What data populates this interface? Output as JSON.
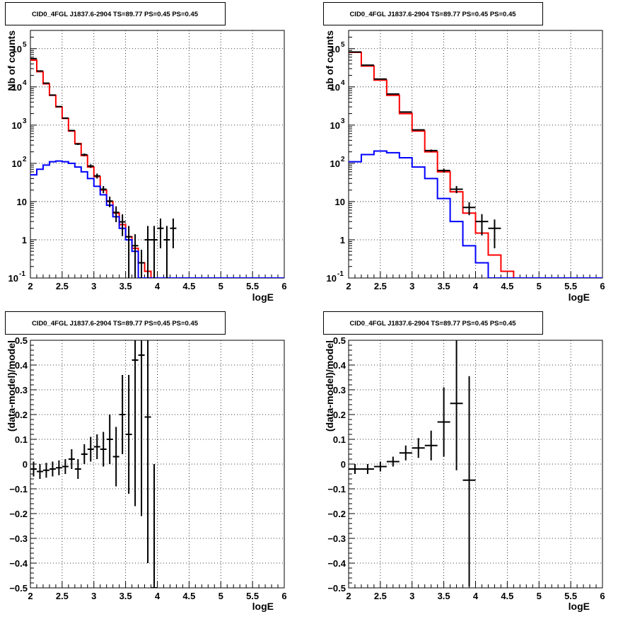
{
  "chart_data": [
    {
      "type": "line",
      "title": "CID0_4FGL J1837.6-2904 TS=89.77 PS=0.45 PS=0.45",
      "xlabel": "logE",
      "ylabel": "Nb of counts",
      "xlim": [
        2,
        6
      ],
      "ylim": [
        0.1,
        300000
      ],
      "log_y": true,
      "grid": true,
      "x_ticks": [
        "2",
        "2.5",
        "3",
        "3.5",
        "4",
        "4.5",
        "5",
        "5.5",
        "6"
      ],
      "y_ticks": [
        "10^{-1}",
        "1",
        "10",
        "10^{2}",
        "10^{3}",
        "10^{4}",
        "10^{5}"
      ],
      "bin_edges": [
        2.0,
        2.1,
        2.2,
        2.3,
        2.4,
        2.5,
        2.6,
        2.7,
        2.8,
        2.9,
        3.0,
        3.1,
        3.2,
        3.3,
        3.4,
        3.5,
        3.6,
        3.7,
        3.8,
        3.9,
        4.0,
        4.1,
        4.2,
        4.3,
        4.4,
        4.5,
        4.6,
        4.7,
        4.8,
        4.9,
        5.0,
        5.1,
        5.2,
        5.3,
        5.4,
        5.5,
        5.6,
        5.7,
        5.8,
        5.9,
        6.0
      ],
      "series": [
        {
          "color": "#ff0000",
          "style": "step",
          "values": [
            50000,
            25000,
            12000,
            6000,
            3000,
            1500,
            700,
            330,
            160,
            80,
            45,
            20,
            10,
            5,
            2.5,
            1.2,
            0.6,
            0.25,
            0.15,
            0.1,
            0.1,
            0.1,
            0.1,
            0.1,
            0.1,
            0.1,
            0.1,
            0.1,
            0.1,
            0.1,
            0.1,
            0.1,
            0.1,
            0.1,
            0.1,
            0.1,
            0.1,
            0.1,
            0.1,
            0.1
          ]
        },
        {
          "color": "#0000ff",
          "style": "step",
          "values": [
            50,
            70,
            90,
            110,
            115,
            110,
            100,
            80,
            60,
            40,
            25,
            15,
            8,
            4,
            2,
            1,
            0.5,
            0.1,
            0.1,
            0.1,
            0.1,
            0.1,
            0.1,
            0.1,
            0.1,
            0.1,
            0.1,
            0.1,
            0.1,
            0.1,
            0.1,
            0.1,
            0.1,
            0.1,
            0.1,
            0.1,
            0.1,
            0.1,
            0.1,
            0.1
          ]
        },
        {
          "color": "#000000",
          "style": "errorbar",
          "x": [
            2.05,
            2.15,
            2.25,
            2.35,
            2.45,
            2.55,
            2.65,
            2.75,
            2.85,
            2.95,
            3.05,
            3.15,
            3.25,
            3.35,
            3.45,
            3.55,
            3.65,
            3.75,
            3.85,
            3.95,
            4.05,
            4.15,
            4.25
          ],
          "y": [
            55000,
            26000,
            12500,
            6100,
            3050,
            1520,
            720,
            320,
            168,
            85,
            47,
            21,
            10.3,
            5.2,
            2.95,
            1.2,
            0.7,
            0.25,
            1,
            1,
            2,
            1,
            2
          ],
          "yerr_lo": [
            230,
            160,
            110,
            78,
            55,
            39,
            27,
            18,
            13,
            9,
            7,
            4.5,
            3.2,
            2.3,
            1.7,
            1.1,
            0.7,
            0.2,
            0.9,
            0.9,
            1.4,
            0.9,
            1.4
          ],
          "yerr_hi": [
            230,
            160,
            110,
            78,
            55,
            39,
            27,
            18,
            13,
            9,
            7,
            4.5,
            3.2,
            2.3,
            1.7,
            1.1,
            0.7,
            0.3,
            1.3,
            1.3,
            1.6,
            1.3,
            1.6
          ]
        }
      ]
    },
    {
      "type": "line",
      "title": "CID0_4FGL J1837.6-2904 TS=89.77 PS=0.45 PS=0.45",
      "xlabel": "logE",
      "ylabel": "nb of counts",
      "xlim": [
        2,
        6
      ],
      "ylim": [
        0.1,
        300000
      ],
      "log_y": true,
      "grid": true,
      "x_ticks": [
        "2",
        "2.5",
        "3",
        "3.5",
        "4",
        "4.5",
        "5",
        "5.5",
        "6"
      ],
      "y_ticks": [
        "10^{-1}",
        "1",
        "10",
        "10^{2}",
        "10^{3}",
        "10^{4}",
        "10^{5}"
      ],
      "bin_edges": [
        2.0,
        2.2,
        2.4,
        2.6,
        2.8,
        3.0,
        3.2,
        3.4,
        3.6,
        3.8,
        4.0,
        4.2,
        4.4,
        4.6,
        4.8,
        5.0,
        5.2,
        5.4,
        5.6,
        5.8,
        6.0
      ],
      "series": [
        {
          "color": "#ff0000",
          "style": "step",
          "values": [
            80000,
            35000,
            15000,
            6000,
            2000,
            700,
            200,
            60,
            18,
            5,
            1.5,
            0.4,
            0.15,
            0.1,
            0.1,
            0.1,
            0.1,
            0.1,
            0.1,
            0.1
          ]
        },
        {
          "color": "#0000ff",
          "style": "step",
          "values": [
            110,
            170,
            210,
            190,
            140,
            80,
            40,
            12,
            3,
            0.7,
            0.25,
            0.1,
            0.1,
            0.1,
            0.1,
            0.1,
            0.1,
            0.1,
            0.1,
            0.1
          ]
        },
        {
          "color": "#000000",
          "style": "errorbar",
          "x": [
            2.1,
            2.3,
            2.5,
            2.7,
            2.9,
            3.1,
            3.3,
            3.5,
            3.7,
            3.9,
            4.1,
            4.3
          ],
          "y": [
            82000,
            37000,
            16000,
            6500,
            2200,
            750,
            215,
            65,
            21,
            7,
            3,
            2
          ],
          "yerr_lo": [
            290,
            190,
            130,
            80,
            47,
            27,
            15,
            8,
            4.5,
            2.6,
            1.7,
            1.4
          ],
          "yerr_hi": [
            290,
            190,
            130,
            80,
            47,
            27,
            15,
            8,
            4.5,
            2.6,
            1.7,
            1.4
          ]
        }
      ]
    },
    {
      "type": "scatter",
      "title": "CID0_4FGL J1837.6-2904 TS=89.77 PS=0.45 PS=0.45",
      "xlabel": "logE",
      "ylabel": "(data-model)/model",
      "xlim": [
        2,
        6
      ],
      "ylim": [
        -0.5,
        0.5
      ],
      "grid": true,
      "x_ticks": [
        "2",
        "2.5",
        "3",
        "3.5",
        "4",
        "4.5",
        "5",
        "5.5",
        "6"
      ],
      "y_ticks": [
        "−0.5",
        "−0.4",
        "−0.3",
        "−0.2",
        "−0.1",
        "0",
        "0.1",
        "0.2",
        "0.3",
        "0.4",
        "0.5"
      ],
      "series": [
        {
          "color": "#000000",
          "style": "errorbar",
          "x": [
            2.05,
            2.15,
            2.25,
            2.35,
            2.45,
            2.55,
            2.65,
            2.75,
            2.85,
            2.95,
            3.05,
            3.15,
            3.25,
            3.35,
            3.45,
            3.55,
            3.65,
            3.75,
            3.85,
            3.95
          ],
          "y": [
            -0.02,
            -0.03,
            -0.025,
            -0.02,
            -0.015,
            -0.01,
            0.02,
            -0.02,
            0.04,
            0.06,
            0.07,
            0.06,
            0.1,
            0.03,
            0.2,
            0.12,
            0.42,
            0.44,
            0.19,
            -0.5
          ],
          "yerr_lo": [
            0.03,
            0.03,
            0.03,
            0.03,
            0.03,
            0.03,
            0.04,
            0.04,
            0.04,
            0.05,
            0.05,
            0.07,
            0.1,
            0.12,
            0.16,
            0.24,
            0.59,
            0.65,
            0.59,
            0.0
          ],
          "yerr_hi": [
            0.03,
            0.03,
            0.03,
            0.03,
            0.03,
            0.03,
            0.04,
            0.04,
            0.04,
            0.05,
            0.05,
            0.07,
            0.1,
            0.12,
            0.16,
            0.24,
            0.08,
            0.06,
            0.31,
            0.5
          ]
        }
      ]
    },
    {
      "type": "scatter",
      "title": "CID0_4FGL J1837.6-2904 TS=89.77 PS=0.45 PS=0.45",
      "xlabel": "logE",
      "ylabel": "(data-model)/model",
      "xlim": [
        2,
        6
      ],
      "ylim": [
        -0.5,
        0.5
      ],
      "grid": true,
      "x_ticks": [
        "2",
        "2.5",
        "3",
        "3.5",
        "4",
        "4.5",
        "5",
        "5.5",
        "6"
      ],
      "y_ticks": [
        "−0.5",
        "−0.4",
        "−0.3",
        "−0.2",
        "−0.1",
        "0",
        "0.1",
        "0.2",
        "0.3",
        "0.4",
        "0.5"
      ],
      "series": [
        {
          "color": "#000000",
          "style": "errorbar",
          "x": [
            2.1,
            2.3,
            2.5,
            2.7,
            2.9,
            3.1,
            3.3,
            3.5,
            3.7,
            3.9
          ],
          "y": [
            -0.02,
            -0.02,
            -0.01,
            0.01,
            0.045,
            0.065,
            0.075,
            0.17,
            0.245,
            -0.065
          ],
          "yerr_lo": [
            0.02,
            0.02,
            0.02,
            0.02,
            0.03,
            0.04,
            0.06,
            0.14,
            0.27,
            0.43
          ],
          "yerr_hi": [
            0.02,
            0.02,
            0.02,
            0.02,
            0.03,
            0.04,
            0.06,
            0.14,
            0.26,
            0.42
          ]
        }
      ]
    }
  ]
}
